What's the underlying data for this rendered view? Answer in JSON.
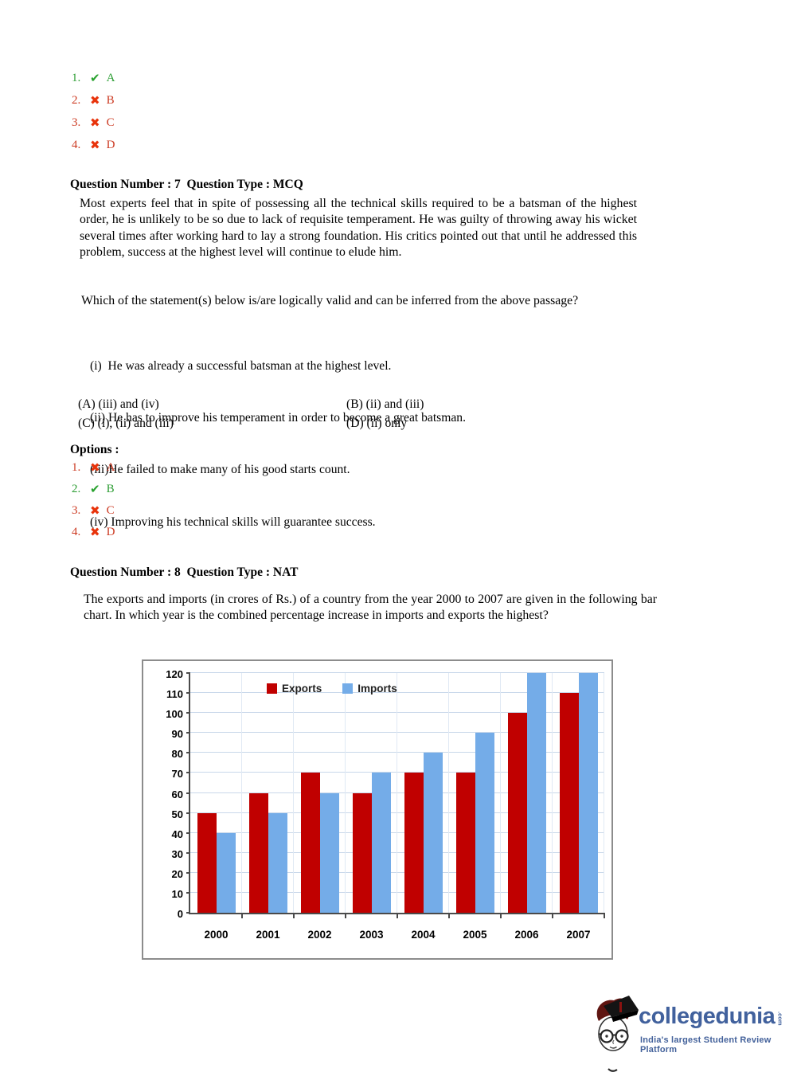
{
  "top_options": {
    "items": [
      {
        "num": "1.",
        "mark": "✔",
        "letter": "A",
        "state": "correct"
      },
      {
        "num": "2.",
        "mark": "✖",
        "letter": "B",
        "state": "wrong"
      },
      {
        "num": "3.",
        "mark": "✖",
        "letter": "C",
        "state": "wrong"
      },
      {
        "num": "4.",
        "mark": "✖",
        "letter": "D",
        "state": "wrong"
      }
    ]
  },
  "question7": {
    "header": "Question Number : 7  Question Type : MCQ",
    "passage": "Most experts feel that in spite of possessing all the technical skills required to be a batsman of the highest order, he is unlikely to be so due to lack of requisite temperament. He was guilty of throwing away his wicket several times after working hard to lay a strong foundation. His critics pointed out that until he addressed this problem, success at the highest level will continue to elude him.",
    "prompt": "Which of the statement(s) below is/are logically valid and can be inferred from the above passage?",
    "statements": [
      "(i)  He was already a successful batsman at the highest level.",
      "(ii) He has to improve his temperament in order to become a great batsman.",
      "(iii)He failed to make many of his good starts count.",
      "(iv) Improving his technical skills will guarantee success."
    ],
    "choices": [
      "(A) (iii) and (iv)",
      "(B) (ii) and (iii)",
      "(C) (i), (ii) and (iii)",
      "(D) (ii) only"
    ],
    "options_label": "Options :",
    "options": [
      {
        "num": "1.",
        "mark": "✖",
        "letter": "A",
        "state": "wrong"
      },
      {
        "num": "2.",
        "mark": "✔",
        "letter": "B",
        "state": "correct"
      },
      {
        "num": "3.",
        "mark": "✖",
        "letter": "C",
        "state": "wrong"
      },
      {
        "num": "4.",
        "mark": "✖",
        "letter": "D",
        "state": "wrong"
      }
    ]
  },
  "question8": {
    "header": "Question Number : 8  Question Type : NAT",
    "text": "The exports and imports (in crores of Rs.) of a country from the year 2000 to 2007 are given in the following bar chart. In which year is the combined percentage increase in imports and exports the highest?"
  },
  "chart_data": {
    "type": "bar",
    "categories": [
      "2000",
      "2001",
      "2002",
      "2003",
      "2004",
      "2005",
      "2006",
      "2007"
    ],
    "series": [
      {
        "name": "Exports",
        "color": "#C00000",
        "values": [
          50,
          60,
          70,
          60,
          70,
          70,
          100,
          110
        ]
      },
      {
        "name": "Imports",
        "color": "#74ACE8",
        "values": [
          40,
          50,
          60,
          70,
          80,
          90,
          120,
          120
        ]
      }
    ],
    "title": "",
    "xlabel": "",
    "ylabel": "",
    "ylim": [
      0,
      120
    ],
    "ytick_step": 10,
    "grid": true,
    "legend_position": "top-center"
  },
  "footer": {
    "brand": "collegedunia",
    "brand_suffix": ".com",
    "tagline": "India's largest Student Review Platform"
  },
  "colors": {
    "correct_green": "#28A22E",
    "wrong_red": "#E8340C",
    "exports_red": "#C00000",
    "imports_blue": "#74ACE8",
    "grid_blue": "#C9D8EA",
    "brand_blue": "#41619D"
  }
}
